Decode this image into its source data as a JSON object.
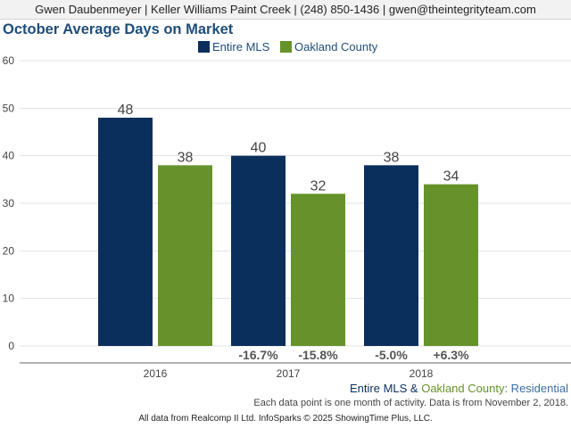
{
  "header": {
    "contact_line": "Gwen Daubenmeyer | Keller Williams Paint Creek | (248) 850-1436 | gwen@theintegrityteam.com"
  },
  "colors": {
    "entire_mls": "#0b2f5d",
    "oakland_county": "#66922b",
    "title": "#1f4e79",
    "footer_residential": "#3b6ea5"
  },
  "chart_data": {
    "type": "bar",
    "title": "October Average Days on Market",
    "xlabel": "",
    "ylabel": "",
    "categories": [
      "2016",
      "2017",
      "2018"
    ],
    "series": [
      {
        "name": "Entire MLS",
        "values": [
          48,
          40,
          38
        ],
        "value_labels": [
          "48",
          "40",
          "38"
        ],
        "change_labels": [
          "",
          "-16.7%",
          "-5.0%"
        ]
      },
      {
        "name": "Oakland County",
        "values": [
          38,
          32,
          34
        ],
        "value_labels": [
          "38",
          "32",
          "34"
        ],
        "change_labels": [
          "",
          "-15.8%",
          "+6.3%"
        ]
      }
    ],
    "ylim": [
      0,
      60
    ],
    "yticks": [
      "0",
      "10",
      "20",
      "30",
      "40",
      "50",
      "60"
    ],
    "grid": true,
    "legend_position": "top-center"
  },
  "footer": {
    "series_entire": "Entire MLS",
    "series_amp": " & ",
    "series_oakland": "Oakland County",
    "series_suffix": ": Residential",
    "note": "Each data point is one month of activity. Data is from November 2, 2018.",
    "source": "All data from Realcomp II Ltd. InfoSparks © 2025 ShowingTime Plus, LLC."
  }
}
